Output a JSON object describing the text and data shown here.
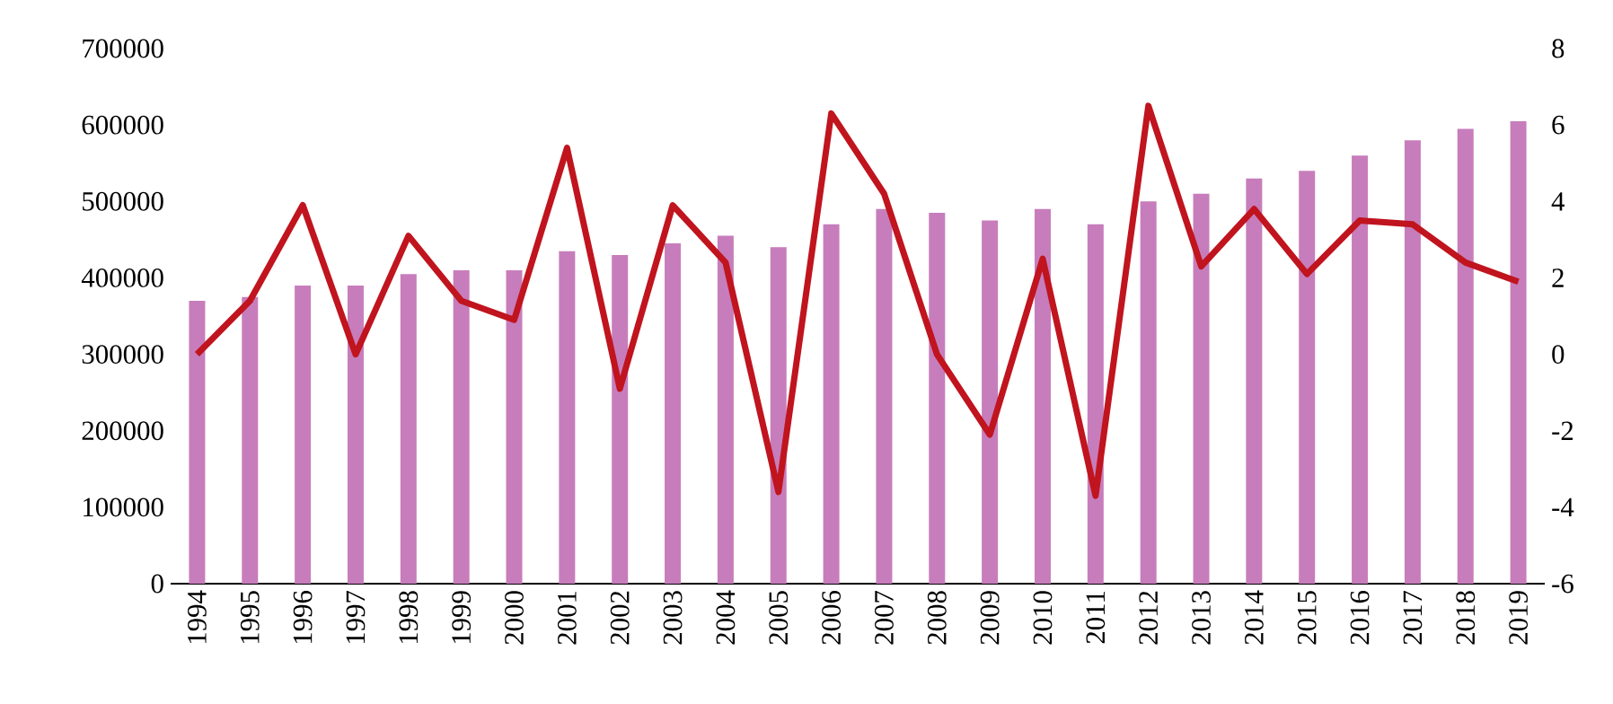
{
  "chart_data": {
    "type": "bar",
    "categories": [
      "1994",
      "1995",
      "1996",
      "1997",
      "1998",
      "1999",
      "2000",
      "2001",
      "2002",
      "2003",
      "2004",
      "2005",
      "2006",
      "2007",
      "2008",
      "2009",
      "2010",
      "2011",
      "2012",
      "2013",
      "2014",
      "2015",
      "2016",
      "2017",
      "2018",
      "2019"
    ],
    "series": [
      {
        "color": "#c77dbb",
        "values": [
          370000,
          375000,
          390000,
          390000,
          405000,
          410000,
          410000,
          435000,
          430000,
          445000,
          455000,
          440000,
          470000,
          490000,
          485000,
          475000,
          490000,
          470000,
          500000,
          510000,
          530000,
          540000,
          560000,
          580000,
          595000,
          605000
        ]
      },
      {
        "type": "line",
        "axis": "y2",
        "color": "#c0141e",
        "marker": "none",
        "line_style": "solid",
        "values": [
          0,
          1.4,
          3.9,
          0,
          3.1,
          1.4,
          0.9,
          5.4,
          -0.9,
          3.9,
          2.4,
          -3.6,
          6.3,
          4.2,
          0,
          -2.1,
          2.5,
          -3.7,
          6.5,
          2.3,
          3.8,
          2.1,
          3.5,
          3.4,
          2.4,
          1.9
        ]
      }
    ],
    "ylim": [
      0,
      700000
    ],
    "yticks": [
      0,
      100000,
      200000,
      300000,
      400000,
      500000,
      600000,
      700000
    ],
    "y2lim": [
      -6,
      8
    ],
    "y2ticks": [
      -6,
      -4,
      -2,
      0,
      2,
      4,
      6,
      8
    ]
  }
}
